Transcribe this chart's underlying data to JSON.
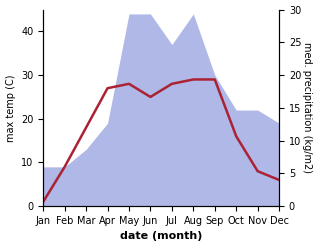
{
  "months": [
    "Jan",
    "Feb",
    "Mar",
    "Apr",
    "May",
    "Jun",
    "Jul",
    "Aug",
    "Sep",
    "Oct",
    "Nov",
    "Dec"
  ],
  "temperature": [
    1,
    9,
    18,
    27,
    28,
    25,
    28,
    29,
    29,
    16,
    8,
    6
  ],
  "precipitation": [
    9,
    9,
    13,
    19,
    44,
    44,
    37,
    44,
    30,
    22,
    22,
    19
  ],
  "temp_color": "#aa2233",
  "precip_color": "#b0b8e8",
  "left_ylabel": "max temp (C)",
  "right_ylabel": "med. precipitation (kg/m2)",
  "xlabel": "date (month)",
  "left_ylim": [
    0,
    45
  ],
  "right_ylim": [
    0,
    30
  ],
  "left_yticks": [
    0,
    10,
    20,
    30,
    40
  ],
  "right_yticks": [
    0,
    5,
    10,
    15,
    20,
    25,
    30
  ],
  "figsize": [
    3.18,
    2.47
  ],
  "dpi": 100
}
